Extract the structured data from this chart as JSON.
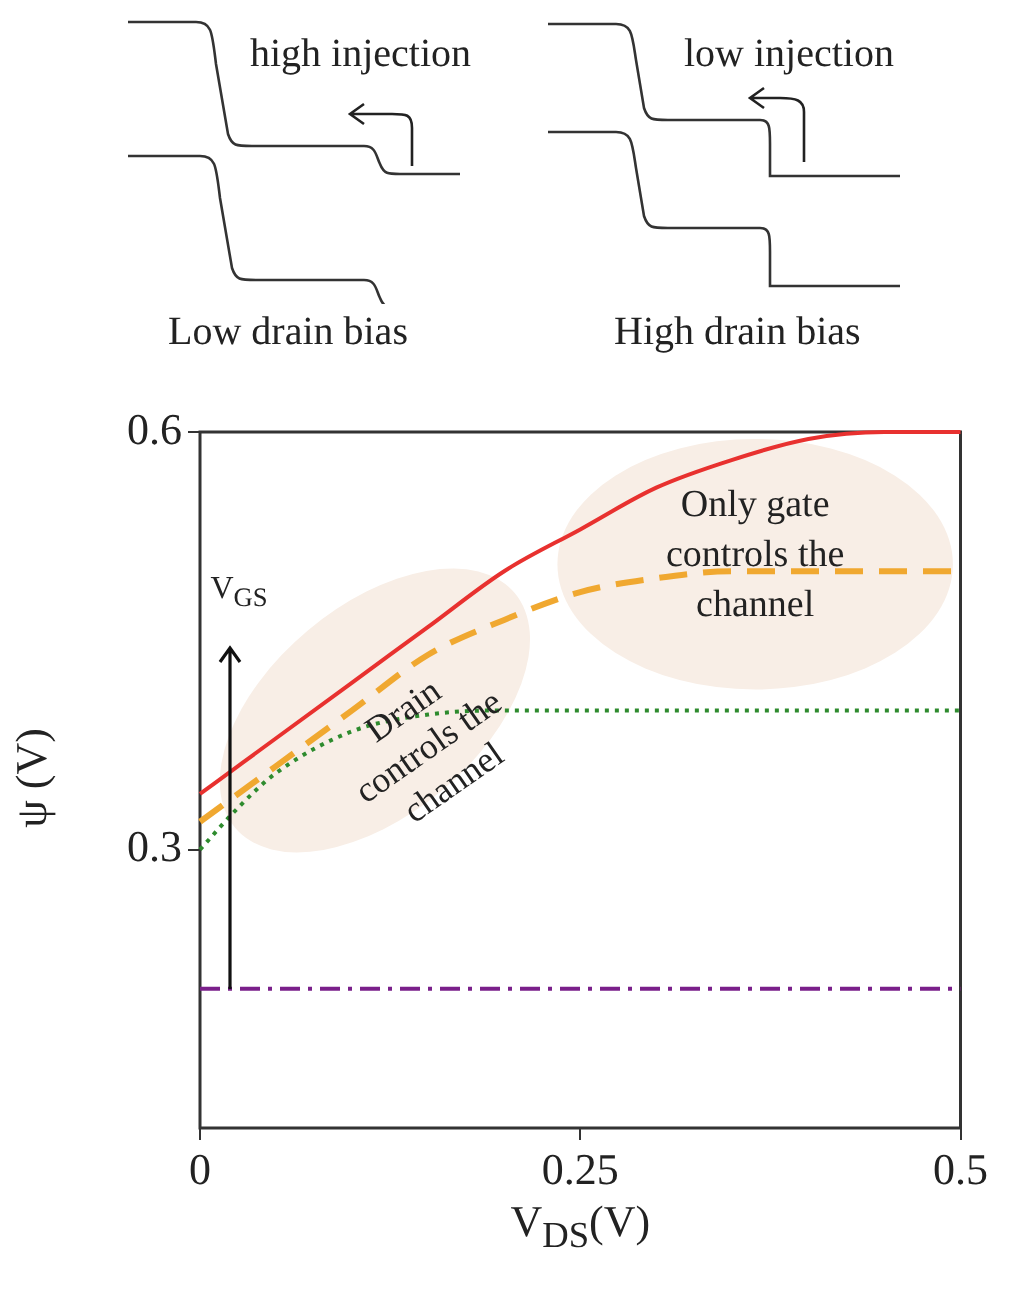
{
  "chart_data": {
    "type": "line",
    "xlabel": "V$_{DS}$(V)",
    "ylabel": "ψ (V)",
    "xlim": [
      0,
      0.5
    ],
    "xticks": [
      0,
      0.25,
      0.5
    ],
    "ylim": [
      0.1,
      0.6
    ],
    "yticks": [
      0.3,
      0.6
    ],
    "grid": false,
    "legend": false,
    "annotations": [
      "V$_{GS}$",
      "Only gate controls the channel",
      "Drain controls the channel",
      "high injection",
      "low injection",
      "Low drain bias",
      "High drain bias"
    ],
    "series": [
      {
        "color": "#e8312f",
        "line_style": "solid",
        "x": [
          0,
          0.025,
          0.05,
          0.1,
          0.15,
          0.2,
          0.25,
          0.3,
          0.35,
          0.4,
          0.45,
          0.5
        ],
        "values": [
          0.34,
          0.36,
          0.38,
          0.42,
          0.46,
          0.5,
          0.53,
          0.56,
          0.58,
          0.595,
          0.6,
          0.6
        ]
      },
      {
        "color": "#f0a830",
        "line_style": "dashed",
        "x": [
          0,
          0.05,
          0.1,
          0.15,
          0.2,
          0.25,
          0.3,
          0.35,
          0.5
        ],
        "values": [
          0.32,
          0.36,
          0.4,
          0.44,
          0.465,
          0.485,
          0.495,
          0.5,
          0.5
        ]
      },
      {
        "color": "#2e8b2e",
        "line_style": "dotted",
        "x": [
          0,
          0.025,
          0.05,
          0.1,
          0.15,
          0.2,
          0.5
        ],
        "values": [
          0.3,
          0.33,
          0.355,
          0.385,
          0.397,
          0.4,
          0.4
        ]
      },
      {
        "color": "#7a1f8a",
        "line_style": "dashdot",
        "x": [
          0,
          0.5
        ],
        "values": [
          0.2,
          0.2
        ]
      }
    ]
  }
}
